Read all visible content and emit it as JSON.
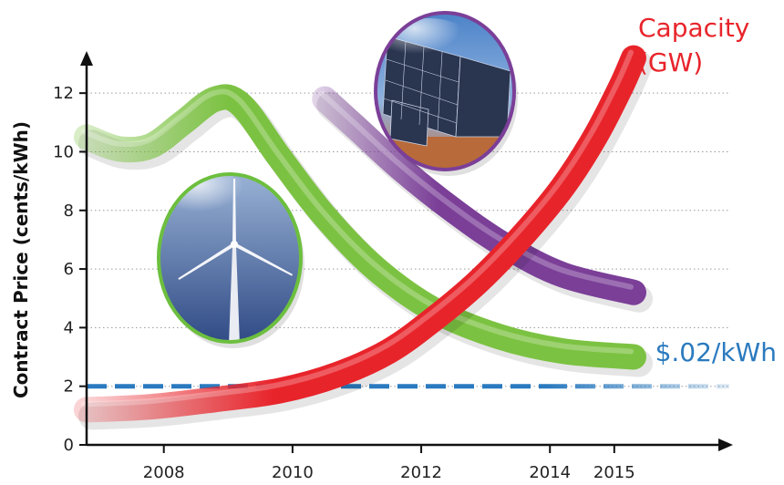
{
  "chart_data": {
    "type": "line",
    "title": "",
    "xlabel": "",
    "ylabel": "Contract Price (cents/kWh)",
    "xlim": [
      2006.8,
      2017.0
    ],
    "ylim": [
      0,
      13
    ],
    "x_ticks": [
      2008,
      2010,
      2012,
      2014,
      2015
    ],
    "y_ticks": [
      0,
      2,
      4,
      6,
      8,
      10,
      12
    ],
    "grid": "horizontal-dotted",
    "series": [
      {
        "name": "",
        "color": "#7cc242",
        "icon": "wind-turbine",
        "x": [
          2006.8,
          2007.3,
          2007.8,
          2008.3,
          2008.8,
          2009.2,
          2009.8,
          2010.5,
          2011.3,
          2012.2,
          2013.2,
          2014.2,
          2015.3
        ],
        "y": [
          10.5,
          10.1,
          10.2,
          11.0,
          11.8,
          11.6,
          9.8,
          7.8,
          6.0,
          4.6,
          3.7,
          3.2,
          3.0
        ]
      },
      {
        "name": "",
        "color": "#7b3f98",
        "icon": "solar-panels",
        "x": [
          2010.5,
          2011.0,
          2011.7,
          2012.5,
          2013.3,
          2014.2,
          2015.3
        ],
        "y": [
          11.8,
          10.8,
          9.4,
          8.0,
          6.8,
          5.8,
          5.2
        ]
      },
      {
        "name": "Capacity (GW)",
        "color": "#e8242b",
        "x": [
          2006.8,
          2007.8,
          2008.8,
          2009.8,
          2010.7,
          2011.5,
          2012.2,
          2012.9,
          2013.6,
          2014.2,
          2014.7,
          2015.1,
          2015.3
        ],
        "y": [
          1.2,
          1.3,
          1.55,
          1.85,
          2.4,
          3.2,
          4.3,
          5.6,
          7.2,
          8.8,
          10.5,
          12.2,
          13.2
        ]
      }
    ],
    "reference_lines": [
      {
        "y": 2,
        "label": "$.02/kWh",
        "color": "#2a7abf",
        "style": "dashed"
      }
    ]
  }
}
